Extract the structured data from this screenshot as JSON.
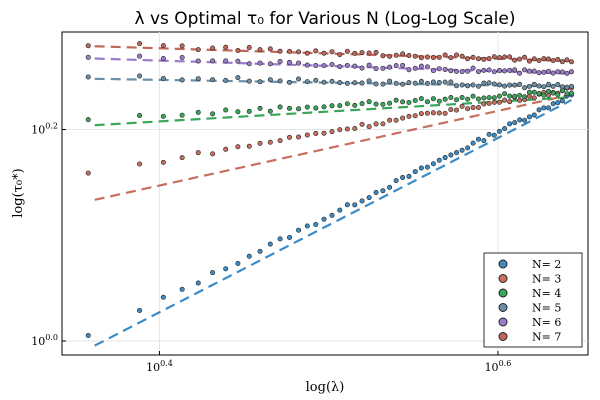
{
  "chart_data": {
    "type": "scatter",
    "title": "λ vs Optimal τ₀ for Various N (Log-Log Scale)",
    "xlabel": "log(λ)",
    "ylabel": "log(τ₀*)",
    "log_scale": "both",
    "grid": true,
    "legend_placement": "bottom-right",
    "xlim": [
      2.2,
      4.5
    ],
    "ylim": [
      0.97,
      1.96
    ],
    "x_ticks": [
      {
        "value": 2.5119,
        "base": "10",
        "exp": "0.4"
      },
      {
        "value": 3.9811,
        "base": "10",
        "exp": "0.6"
      }
    ],
    "y_ticks": [
      {
        "value": 1.0,
        "base": "10",
        "exp": "0.0"
      },
      {
        "value": 1.5849,
        "base": "10",
        "exp": "0.2"
      }
    ],
    "series": [
      {
        "name": "N= 2",
        "color": "#3b8bc6",
        "x_min": 2.28,
        "x_max": 4.4,
        "fit": [
          [
            2.3,
            0.99
          ],
          [
            4.4,
            1.69
          ]
        ],
        "scatter_start_y": 1.01,
        "scatter_end_y": 1.71
      },
      {
        "name": "N= 3",
        "color": "#c87060",
        "x_min": 2.28,
        "x_max": 4.4,
        "fit": [
          [
            2.3,
            1.36
          ],
          [
            4.4,
            1.71
          ]
        ],
        "scatter_start_y": 1.44,
        "scatter_end_y": 1.73
      },
      {
        "name": "N= 4",
        "color": "#3aa65a",
        "x_min": 2.28,
        "x_max": 4.4,
        "fit": [
          [
            2.3,
            1.6
          ],
          [
            4.4,
            1.7
          ]
        ],
        "scatter_start_y": 1.62,
        "scatter_end_y": 1.72
      },
      {
        "name": "N= 5",
        "color": "#6d8fa6",
        "x_min": 2.28,
        "x_max": 4.4,
        "fit": [
          [
            2.3,
            1.77
          ],
          [
            4.4,
            1.74
          ]
        ],
        "scatter_start_y": 1.78,
        "scatter_end_y": 1.74
      },
      {
        "name": "N= 6",
        "color": "#9b7cc9",
        "x_min": 2.28,
        "x_max": 4.4,
        "fit": [
          [
            2.3,
            1.85
          ],
          [
            4.4,
            1.79
          ]
        ],
        "scatter_start_y": 1.86,
        "scatter_end_y": 1.79
      },
      {
        "name": "N= 7",
        "color": "#c0675a",
        "x_min": 2.28,
        "x_max": 4.4,
        "fit": [
          [
            2.3,
            1.9
          ],
          [
            4.4,
            1.84
          ]
        ],
        "scatter_start_y": 1.91,
        "scatter_end_y": 1.84
      }
    ]
  }
}
